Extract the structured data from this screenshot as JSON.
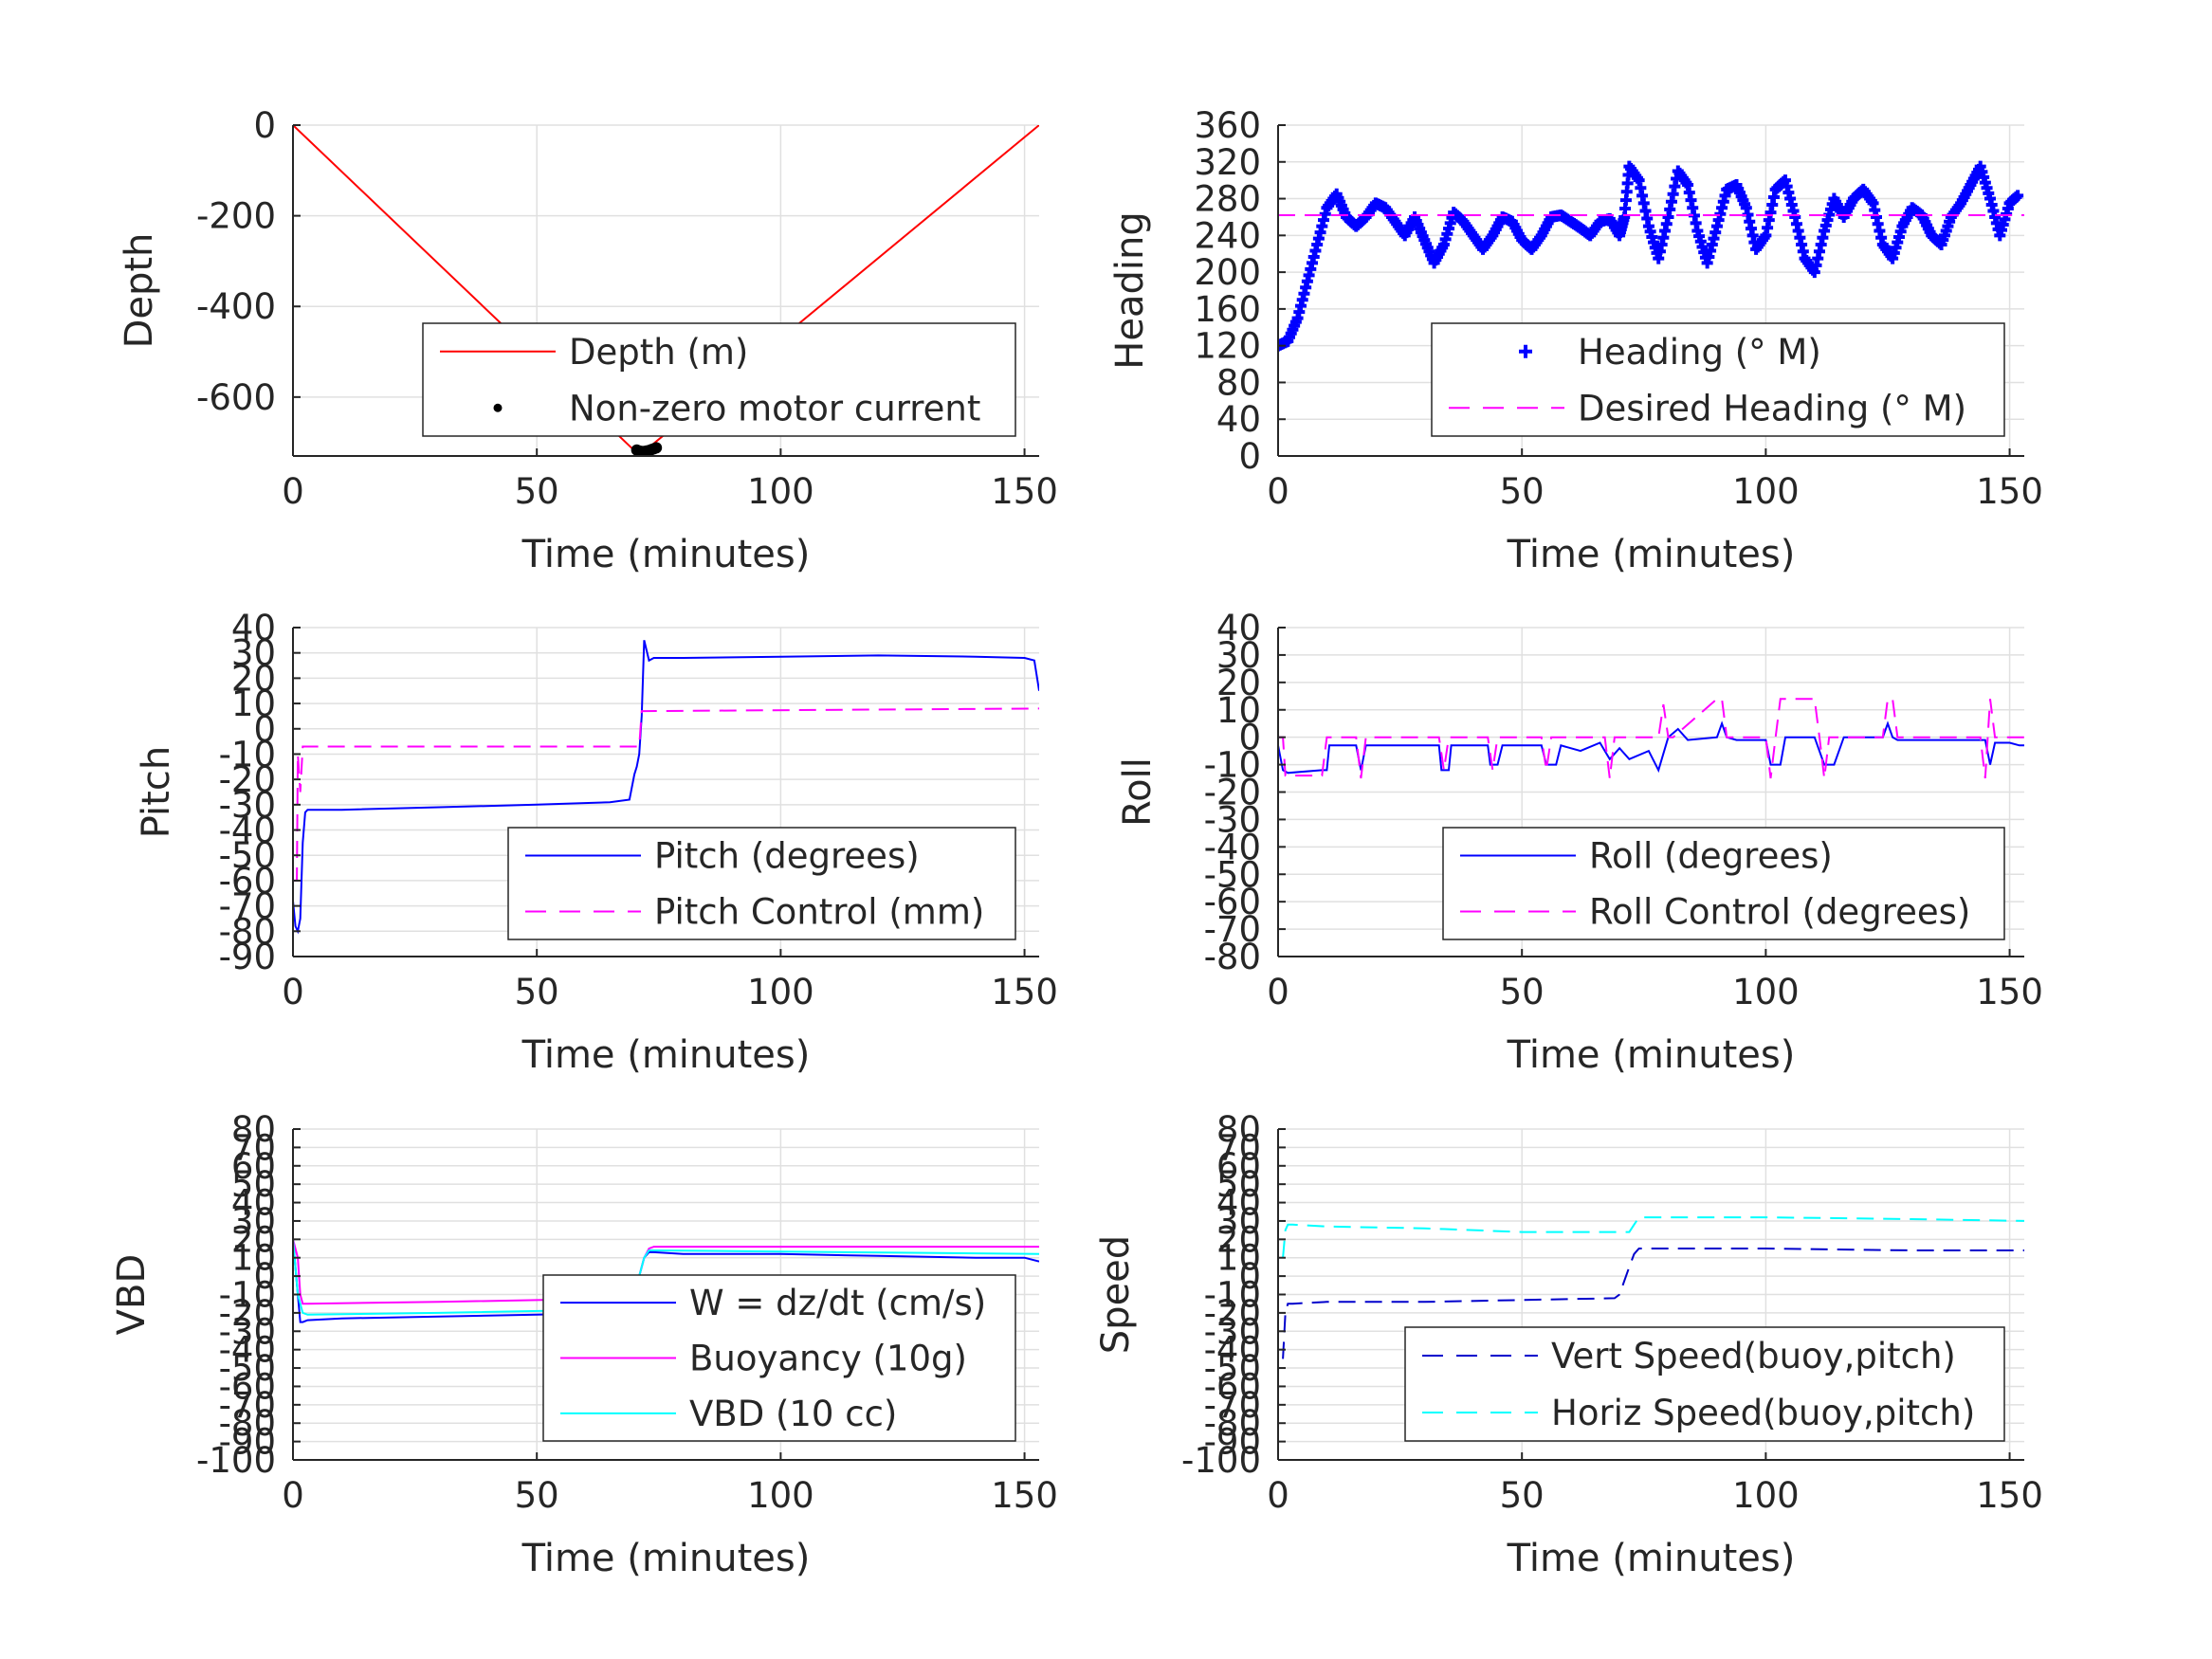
{
  "chart_data": [
    {
      "type": "line",
      "xlabel": "Time (minutes)",
      "ylabel": "Depth",
      "xlim": [
        0,
        153
      ],
      "ylim": [
        -730,
        0
      ],
      "xticks": [
        0,
        50,
        100,
        150
      ],
      "yticks": [
        0,
        -200,
        -400,
        -600
      ],
      "grid": true,
      "legend": "bottom-right",
      "series": [
        {
          "name": "Depth (m)",
          "style": "solid",
          "color": "#ff0000",
          "x": [
            0,
            70,
            72,
            153
          ],
          "y": [
            0,
            -718,
            -720,
            0
          ]
        },
        {
          "name": "Non-zero motor current",
          "style": "dot",
          "color": "#000000",
          "x": [
            70.5,
            71,
            71.5,
            72,
            72.5,
            73,
            73.5,
            74,
            74.5
          ],
          "y": [
            -717,
            -719,
            -720,
            -720,
            -719,
            -718,
            -716,
            -714,
            -712
          ]
        }
      ]
    },
    {
      "type": "scatter",
      "xlabel": "Time (minutes)",
      "ylabel": "Heading",
      "xlim": [
        0,
        153
      ],
      "ylim": [
        0,
        360
      ],
      "xticks": [
        0,
        50,
        100,
        150
      ],
      "yticks": [
        0,
        40,
        80,
        120,
        160,
        200,
        240,
        280,
        320,
        360
      ],
      "grid": true,
      "legend": "bottom-right",
      "series": [
        {
          "name": "Heading (° M)",
          "style": "plus",
          "color": "#0000ff",
          "x": [
            0,
            2,
            4,
            6,
            8,
            10,
            12,
            14,
            16,
            18,
            20,
            22,
            24,
            26,
            28,
            30,
            32,
            34,
            36,
            38,
            40,
            42,
            44,
            46,
            48,
            50,
            52,
            54,
            56,
            58,
            60,
            62,
            64,
            66,
            68,
            70,
            71,
            72,
            74,
            76,
            78,
            80,
            82,
            84,
            86,
            88,
            90,
            92,
            94,
            96,
            98,
            100,
            102,
            104,
            106,
            108,
            110,
            112,
            114,
            116,
            118,
            120,
            122,
            124,
            126,
            128,
            130,
            132,
            134,
            136,
            138,
            140,
            142,
            144,
            146,
            148,
            150,
            152
          ],
          "y": [
            120,
            125,
            150,
            190,
            230,
            270,
            285,
            260,
            250,
            260,
            275,
            270,
            255,
            240,
            260,
            235,
            210,
            230,
            265,
            255,
            240,
            225,
            240,
            260,
            255,
            235,
            225,
            240,
            260,
            262,
            255,
            248,
            240,
            255,
            258,
            240,
            260,
            315,
            300,
            250,
            215,
            260,
            310,
            295,
            245,
            210,
            250,
            290,
            295,
            270,
            225,
            240,
            290,
            300,
            260,
            215,
            200,
            245,
            280,
            260,
            280,
            290,
            275,
            230,
            215,
            250,
            270,
            262,
            240,
            230,
            260,
            275,
            295,
            315,
            280,
            240,
            275,
            285
          ]
        },
        {
          "name": "Desired Heading (° M)",
          "style": "dash",
          "color": "#ff00ff",
          "x": [
            0,
            153
          ],
          "y": [
            262,
            262
          ]
        }
      ]
    },
    {
      "type": "line",
      "xlabel": "Time (minutes)",
      "ylabel": "Pitch",
      "xlim": [
        0,
        153
      ],
      "ylim": [
        -90,
        40
      ],
      "xticks": [
        0,
        50,
        100,
        150
      ],
      "yticks": [
        -90,
        -80,
        -70,
        -60,
        -50,
        -40,
        -30,
        -20,
        -10,
        0,
        10,
        20,
        30,
        40
      ],
      "grid": true,
      "legend": "bottom-right",
      "series": [
        {
          "name": "Pitch (degrees)",
          "style": "solid",
          "color": "#0000ff",
          "x": [
            0,
            0.5,
            1,
            1.5,
            2,
            2.5,
            3,
            10,
            30,
            50,
            65,
            69,
            70,
            70.5,
            71,
            71.5,
            72,
            73,
            74,
            80,
            100,
            120,
            140,
            150,
            152,
            153
          ],
          "y": [
            -68,
            -78,
            -80,
            -75,
            -45,
            -33,
            -32,
            -32,
            -31,
            -30,
            -29,
            -28,
            -18,
            -15,
            -10,
            5,
            35,
            27,
            28,
            28,
            28.5,
            29,
            28.5,
            28,
            27,
            15
          ]
        },
        {
          "name": "Pitch Control (mm)",
          "style": "dash",
          "color": "#ff00ff",
          "x": [
            0,
            0.8,
            1,
            1.5,
            2,
            2.5,
            3,
            70,
            71,
            71.5,
            72,
            153
          ],
          "y": [
            -60,
            -60,
            -10,
            -25,
            -7,
            -7,
            -7,
            -7,
            -7,
            7,
            7,
            8
          ]
        }
      ]
    },
    {
      "type": "line",
      "xlabel": "Time (minutes)",
      "ylabel": "Roll",
      "xlim": [
        0,
        153
      ],
      "ylim": [
        -80,
        40
      ],
      "xticks": [
        0,
        50,
        100,
        150
      ],
      "yticks": [
        -80,
        -70,
        -60,
        -50,
        -40,
        -30,
        -20,
        -10,
        0,
        10,
        20,
        30,
        40
      ],
      "grid": true,
      "legend": "bottom-right",
      "series": [
        {
          "name": "Roll (degrees)",
          "style": "solid",
          "color": "#0000ff",
          "x": [
            0,
            1,
            2,
            9,
            10,
            10.5,
            16,
            17,
            18,
            33,
            33.5,
            35,
            35.5,
            36,
            43,
            43.5,
            45,
            46,
            54,
            55,
            57,
            58,
            62,
            66,
            68,
            70,
            72,
            76,
            78,
            80,
            82,
            84,
            90,
            91,
            92,
            94,
            100,
            101,
            103,
            104,
            110,
            112,
            114,
            116,
            124,
            125,
            126,
            127,
            140,
            145,
            146,
            147,
            150,
            152,
            153
          ],
          "y": [
            -3,
            -12,
            -13,
            -12,
            -12,
            -3,
            -3,
            -12,
            -3,
            -3,
            -12,
            -12,
            -3,
            -3,
            -3,
            -10,
            -10,
            -3,
            -3,
            -10,
            -10,
            -3,
            -5,
            -2,
            -8,
            -4,
            -8,
            -5,
            -12,
            0,
            3,
            -1,
            0,
            5,
            0,
            -1,
            -1,
            -10,
            -10,
            0,
            0,
            -10,
            -10,
            0,
            0,
            5,
            0,
            -1,
            -1,
            -1,
            -10,
            -2,
            -2,
            -3,
            -3
          ]
        },
        {
          "name": "Roll Control (degrees)",
          "style": "dash",
          "color": "#ff00ff",
          "x": [
            0,
            1,
            1.5,
            2,
            9,
            10,
            16,
            17,
            18,
            33,
            34,
            35,
            43,
            44,
            45,
            54,
            55,
            56,
            67,
            68,
            69,
            78,
            79,
            80,
            81,
            90,
            91,
            92,
            100,
            101,
            102,
            103,
            110,
            111,
            112,
            113,
            124,
            125,
            126,
            127,
            144,
            145,
            146,
            147,
            153
          ],
          "y": [
            0,
            0,
            -14,
            -14,
            -14,
            0,
            0,
            -15,
            0,
            0,
            -12,
            0,
            0,
            -12,
            0,
            0,
            -12,
            0,
            0,
            -15,
            0,
            0,
            12,
            0,
            0,
            14,
            14,
            0,
            0,
            -15,
            0,
            14,
            14,
            0,
            -15,
            0,
            0,
            14,
            14,
            0,
            0,
            -15,
            14,
            0,
            0
          ]
        }
      ]
    },
    {
      "type": "line",
      "xlabel": "Time (minutes)",
      "ylabel": "VBD",
      "xlim": [
        0,
        153
      ],
      "ylim": [
        -100,
        80
      ],
      "xticks": [
        0,
        50,
        100,
        150
      ],
      "yticks": [
        -100,
        -90,
        -80,
        -70,
        -60,
        -50,
        -40,
        -30,
        -20,
        -10,
        0,
        10,
        20,
        30,
        40,
        50,
        60,
        70,
        80
      ],
      "grid": true,
      "legend": "bottom-right",
      "series": [
        {
          "name": "W = dz/dt (cm/s)",
          "style": "solid",
          "color": "#0000ff",
          "x": [
            0,
            1,
            1.5,
            2,
            3,
            10,
            30,
            50,
            65,
            69,
            71,
            72,
            73,
            74,
            80,
            100,
            120,
            140,
            150,
            153
          ],
          "y": [
            20,
            -10,
            -25,
            -25,
            -24,
            -23,
            -22,
            -21,
            -20,
            -20,
            0,
            10,
            13,
            13,
            12,
            12,
            11,
            10,
            10,
            8
          ]
        },
        {
          "name": "Buoyancy (10g)",
          "style": "solid",
          "color": "#ff00ff",
          "x": [
            0,
            1,
            1.5,
            2,
            3,
            30,
            70,
            71,
            72,
            73,
            74,
            153
          ],
          "y": [
            20,
            10,
            -10,
            -15,
            -15,
            -14,
            -12,
            0,
            10,
            15,
            16,
            16
          ]
        },
        {
          "name": "VBD (10 cc)",
          "style": "solid",
          "color": "#00ffff",
          "x": [
            0,
            1,
            2,
            3,
            30,
            70,
            71,
            72,
            73,
            74,
            153
          ],
          "y": [
            20,
            -10,
            -20,
            -21,
            -20,
            -18,
            0,
            10,
            14,
            14,
            12
          ]
        }
      ]
    },
    {
      "type": "line",
      "xlabel": "Time (minutes)",
      "ylabel": "Speed",
      "xlim": [
        0,
        153
      ],
      "ylim": [
        -100,
        80
      ],
      "xticks": [
        0,
        50,
        100,
        150
      ],
      "yticks": [
        -100,
        -90,
        -80,
        -70,
        -60,
        -50,
        -40,
        -30,
        -20,
        -10,
        0,
        10,
        20,
        30,
        40,
        50,
        60,
        70,
        80
      ],
      "grid": true,
      "legend": "bottom-right",
      "series": [
        {
          "name": "Vert Speed(buoy,pitch)",
          "style": "dash",
          "color": "#0000cc",
          "x": [
            1,
            1.5,
            2,
            3,
            10,
            30,
            50,
            69,
            70,
            72,
            73,
            74,
            100,
            130,
            153
          ],
          "y": [
            -45,
            -20,
            -15,
            -15,
            -14,
            -14,
            -13,
            -12,
            -10,
            5,
            12,
            15,
            15,
            14,
            14
          ]
        },
        {
          "name": "Horiz Speed(buoy,pitch)",
          "style": "dash",
          "color": "#00ffff",
          "x": [
            1,
            1.5,
            2,
            3,
            10,
            30,
            50,
            72,
            73,
            74,
            100,
            130,
            153
          ],
          "y": [
            10,
            25,
            28,
            28,
            27,
            26,
            24,
            24,
            28,
            32,
            32,
            31,
            30
          ]
        }
      ]
    }
  ]
}
